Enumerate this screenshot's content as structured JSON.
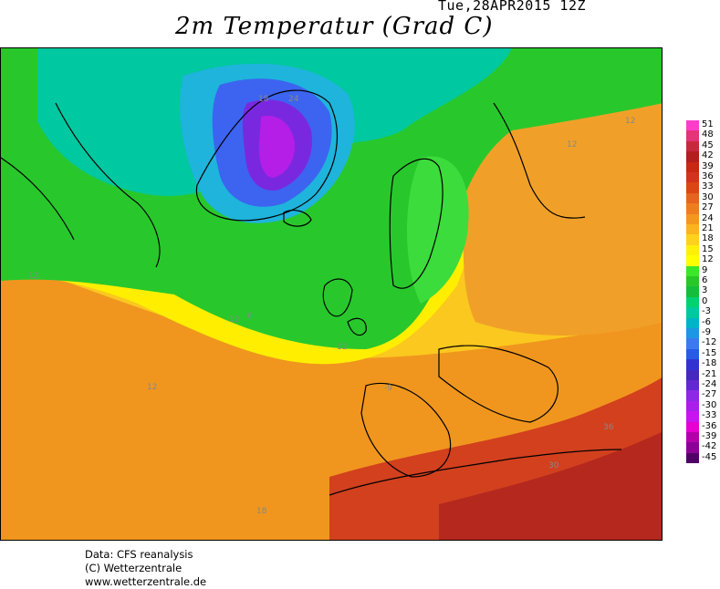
{
  "header": {
    "timestamp": "Tue,28APR2015 12Z",
    "title": "2m Temperatur (Grad C)"
  },
  "legend": {
    "values": [
      "51",
      "48",
      "45",
      "42",
      "39",
      "36",
      "33",
      "30",
      "27",
      "24",
      "21",
      "18",
      "15",
      "12",
      "9",
      "6",
      "3",
      "0",
      "-3",
      "-6",
      "-9",
      "-12",
      "-15",
      "-18",
      "-21",
      "-24",
      "-27",
      "-30",
      "-33",
      "-36",
      "-39",
      "-42",
      "-45"
    ],
    "colors": [
      "#ff3cc8",
      "#e63278",
      "#c8283c",
      "#b41e1e",
      "#c82814",
      "#d2321e",
      "#dc4614",
      "#e6641e",
      "#ee7d1e",
      "#f5961e",
      "#fab41e",
      "#fdd21e",
      "#fff00a",
      "#ffff00",
      "#3ce628",
      "#28c828",
      "#14be3c",
      "#00d26e",
      "#00c8a0",
      "#00b4c8",
      "#1e96e6",
      "#3c78f0",
      "#285ae6",
      "#3232d2",
      "#4628be",
      "#6428d2",
      "#8c28e6",
      "#aa1eeb",
      "#c814f0",
      "#e600d2",
      "#b400aa",
      "#8c0096",
      "#500064"
    ]
  },
  "map": {
    "contour_labels": [
      "18",
      "24",
      "12",
      "12",
      "12",
      "6",
      "12",
      "12",
      "30",
      "36",
      "18",
      "-9",
      "12"
    ]
  },
  "credits": {
    "line1": "Data: CFS reanalysis",
    "line2": "(C) Wetterzentrale",
    "line3": "www.wetterzentrale.de"
  }
}
